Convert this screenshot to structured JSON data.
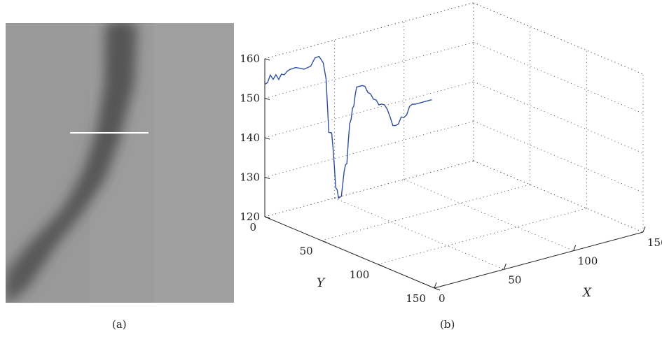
{
  "panels": {
    "a_label": "(a)",
    "b_label": "(b)"
  },
  "image_panel": {
    "content": "grayscale ultrasound image with a dark oblique vessel and a white horizontal measurement line",
    "colors": {
      "background": "#9b9b9b",
      "vessel": "#595959",
      "marker": "#ffffff"
    }
  },
  "chart_data": {
    "type": "line",
    "projection": "3d",
    "title": "",
    "xlabel": "X",
    "ylabel": "Y",
    "zlabel": "",
    "xlim": [
      0,
      150
    ],
    "ylim": [
      0,
      150
    ],
    "zlim": [
      120,
      160
    ],
    "xticks": [
      0,
      50,
      100,
      150
    ],
    "yticks": [
      0,
      50,
      100,
      150
    ],
    "zticks": [
      120,
      130,
      140,
      150,
      160
    ],
    "grid": true,
    "line_color": "#2f4fa2",
    "series": [
      {
        "x": [
          0,
          2,
          4,
          6,
          8,
          10,
          12,
          14,
          16,
          18,
          20,
          22,
          24,
          26,
          28,
          30,
          33,
          36,
          39,
          42,
          44,
          46,
          48,
          49,
          50,
          51,
          52,
          53,
          55,
          57,
          58,
          59,
          60,
          61,
          62,
          63,
          64,
          65,
          66,
          67,
          68,
          70,
          72,
          74,
          76,
          78,
          80,
          82,
          84,
          86,
          88,
          90,
          92,
          94,
          96,
          98,
          100,
          102,
          104,
          106,
          108,
          110,
          112,
          114,
          116,
          118,
          120
        ],
        "y": [
          0,
          0,
          0,
          0,
          0,
          0,
          0,
          0,
          0,
          0,
          0,
          0,
          0,
          0,
          0,
          0,
          0,
          0,
          0,
          0,
          0,
          0,
          0,
          0,
          0,
          0,
          0,
          0,
          0,
          0,
          0,
          0,
          0,
          0,
          0,
          0,
          0,
          0,
          0,
          0,
          0,
          0,
          0,
          0,
          0,
          0,
          0,
          0,
          0,
          0,
          0,
          0,
          0,
          0,
          0,
          0,
          0,
          0,
          0,
          0,
          0,
          0,
          0,
          0,
          0,
          0,
          0
        ],
        "z": [
          153.5,
          153.8,
          155.5,
          154.2,
          155.2,
          153.8,
          155.0,
          154.6,
          155.3,
          155.6,
          155.6,
          155.7,
          155.4,
          155.1,
          154.7,
          154.8,
          155.0,
          156.8,
          156.9,
          155.0,
          150.8,
          137.0,
          136.7,
          133.0,
          128.0,
          122.5,
          121.9,
          119.7,
          120.0,
          126.0,
          127.7,
          127.9,
          133.5,
          137.8,
          138.8,
          141.5,
          142.0,
          144.8,
          146.6,
          146.6,
          146.6,
          146.6,
          146.2,
          144.5,
          143.9,
          142.4,
          142.0,
          140.6,
          140.6,
          140.2,
          138.9,
          136.8,
          134.4,
          134.2,
          134.4,
          136.0,
          135.7,
          136.2,
          138.1,
          138.5,
          138.3,
          138.3,
          138.3,
          138.3,
          138.3,
          138.3,
          138.3
        ]
      }
    ]
  }
}
